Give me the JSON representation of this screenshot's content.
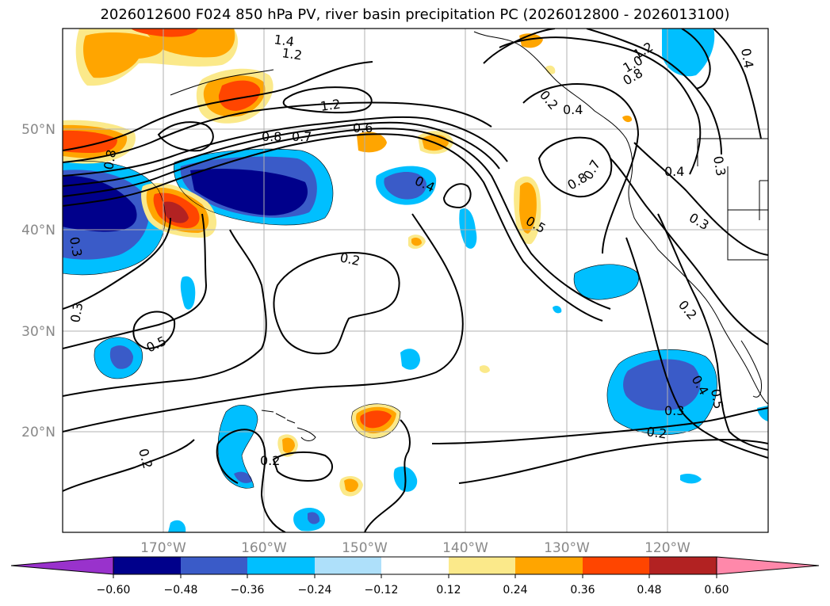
{
  "title": "2026012600 F024 850 hPa PV, river basin precipitation PC (2026012800 - 2026013100)",
  "lon_labels": [
    "170°W",
    "160°W",
    "150°W",
    "140°W",
    "130°W",
    "120°W"
  ],
  "lat_labels": [
    "50°N",
    "40°N",
    "30°N",
    "20°N"
  ],
  "contour_labels": [
    "1.4",
    "1.2",
    "1.2",
    "0.8",
    "0.7",
    "0.6",
    "0.4",
    "0.5",
    "0.8",
    "0.7",
    "0.4",
    "0.4",
    "0.3",
    "0.3",
    "0.2",
    "0.2",
    "0.5",
    "0.3",
    "0.2",
    "0.2",
    "0.4",
    "0.5",
    "0.3",
    "0.2",
    "1.2",
    "1.0",
    "0.8",
    "0.4",
    "0.8",
    "0.3",
    "0.2"
  ],
  "colorbar": {
    "ticks": [
      "−0.60",
      "−0.48",
      "−0.36",
      "−0.24",
      "−0.12",
      "0.12",
      "0.24",
      "0.36",
      "0.48",
      "0.60"
    ],
    "colors": [
      "#9932cc",
      "#00008b",
      "#3a5bc8",
      "#00bfff",
      "#aee0fa",
      "#ffffff",
      "#fbe98a",
      "#ffa500",
      "#ff4500",
      "#b22222",
      "#ff88aa"
    ]
  }
}
